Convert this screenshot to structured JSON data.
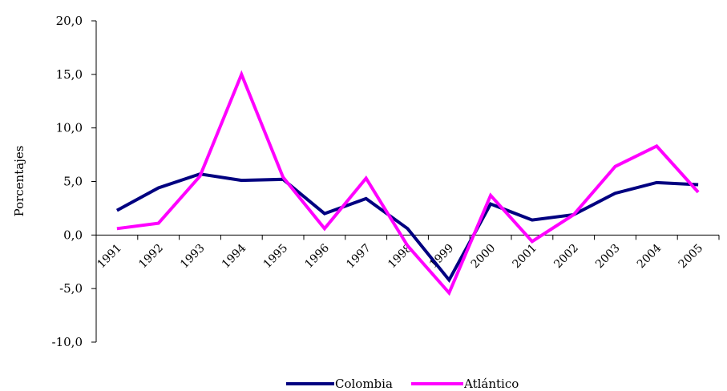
{
  "chart_data": {
    "type": "line",
    "title": "",
    "xlabel": "",
    "ylabel": "Porcentajes",
    "ylim": [
      -10,
      20
    ],
    "y_ticks": [
      "-10,0",
      "-5,0",
      "0,0",
      "5,0",
      "10,0",
      "15,0",
      "20,0"
    ],
    "y_tick_values": [
      -10,
      -5,
      0,
      5,
      10,
      15,
      20
    ],
    "categories": [
      "1991",
      "1992",
      "1993",
      "1994",
      "1995",
      "1996",
      "1997",
      "1998",
      "1999",
      "2000",
      "2001",
      "2002",
      "2003",
      "2004",
      "2005"
    ],
    "grid": false,
    "legend_position": "bottom",
    "series": [
      {
        "name": "Colombia",
        "color": "#000080",
        "values": [
          2.3,
          4.4,
          5.7,
          5.1,
          5.2,
          2.0,
          3.4,
          0.6,
          -4.2,
          2.9,
          1.4,
          1.9,
          3.9,
          4.9,
          4.7
        ]
      },
      {
        "name": "Atlántico",
        "color": "#ff00ff",
        "values": [
          0.6,
          1.1,
          5.5,
          15.0,
          5.4,
          0.6,
          5.3,
          -1.0,
          -5.4,
          3.7,
          -0.6,
          1.9,
          6.4,
          8.3,
          4.0
        ]
      }
    ]
  }
}
